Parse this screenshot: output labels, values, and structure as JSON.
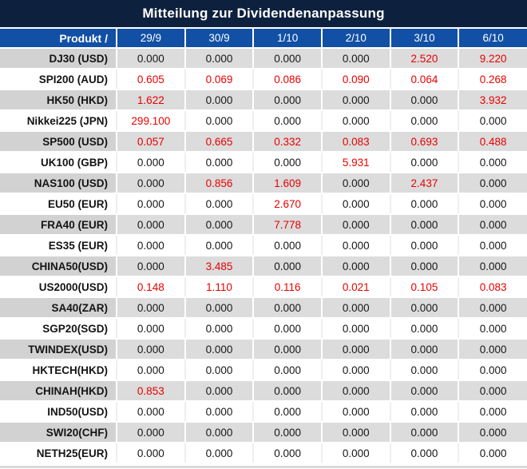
{
  "title": "Mitteilung zur Dividendenanpassung",
  "colors": {
    "title_bar_bg": "#0d203e",
    "header_row_bg": "#1150a5",
    "stripe_label_bg": "#d2d2d2",
    "stripe_value_bg": "#dcdcdc",
    "red_value_text": "#e90000",
    "dark_value_text": "#161616"
  },
  "chart_data": {
    "type": "table",
    "title": "Mitteilung zur Dividendenanpassung",
    "columns": [
      "Produkt /",
      "29/9",
      "30/9",
      "1/10",
      "2/10",
      "3/10",
      "6/10"
    ],
    "rows": [
      {
        "product": "DJ30 (USD)",
        "values": [
          "0.000",
          "0.000",
          "0.000",
          "0.000",
          "2.520",
          "9.220"
        ],
        "red": [
          false,
          false,
          false,
          false,
          true,
          true
        ]
      },
      {
        "product": "SPI200 (AUD)",
        "values": [
          "0.605",
          "0.069",
          "0.086",
          "0.090",
          "0.064",
          "0.268"
        ],
        "red": [
          true,
          true,
          true,
          true,
          true,
          true
        ]
      },
      {
        "product": "HK50 (HKD)",
        "values": [
          "1.622",
          "0.000",
          "0.000",
          "0.000",
          "0.000",
          "3.932"
        ],
        "red": [
          true,
          false,
          false,
          false,
          false,
          true
        ]
      },
      {
        "product": "Nikkei225 (JPN)",
        "values": [
          "299.100",
          "0.000",
          "0.000",
          "0.000",
          "0.000",
          "0.000"
        ],
        "red": [
          true,
          false,
          false,
          false,
          false,
          false
        ]
      },
      {
        "product": "SP500 (USD)",
        "values": [
          "0.057",
          "0.665",
          "0.332",
          "0.083",
          "0.693",
          "0.488"
        ],
        "red": [
          true,
          true,
          true,
          true,
          true,
          true
        ]
      },
      {
        "product": "UK100 (GBP)",
        "values": [
          "0.000",
          "0.000",
          "0.000",
          "5.931",
          "0.000",
          "0.000"
        ],
        "red": [
          false,
          false,
          false,
          true,
          false,
          false
        ]
      },
      {
        "product": "NAS100 (USD)",
        "values": [
          "0.000",
          "0.856",
          "1.609",
          "0.000",
          "2.437",
          "0.000"
        ],
        "red": [
          false,
          true,
          true,
          false,
          true,
          false
        ]
      },
      {
        "product": "EU50 (EUR)",
        "values": [
          "0.000",
          "0.000",
          "2.670",
          "0.000",
          "0.000",
          "0.000"
        ],
        "red": [
          false,
          false,
          true,
          false,
          false,
          false
        ]
      },
      {
        "product": "FRA40 (EUR)",
        "values": [
          "0.000",
          "0.000",
          "7.778",
          "0.000",
          "0.000",
          "0.000"
        ],
        "red": [
          false,
          false,
          true,
          false,
          false,
          false
        ]
      },
      {
        "product": "ES35 (EUR)",
        "values": [
          "0.000",
          "0.000",
          "0.000",
          "0.000",
          "0.000",
          "0.000"
        ],
        "red": [
          false,
          false,
          false,
          false,
          false,
          false
        ]
      },
      {
        "product": "CHINA50(USD)",
        "values": [
          "0.000",
          "3.485",
          "0.000",
          "0.000",
          "0.000",
          "0.000"
        ],
        "red": [
          false,
          true,
          false,
          false,
          false,
          false
        ]
      },
      {
        "product": "US2000(USD)",
        "values": [
          "0.148",
          "1.110",
          "0.116",
          "0.021",
          "0.105",
          "0.083"
        ],
        "red": [
          true,
          true,
          true,
          true,
          true,
          true
        ]
      },
      {
        "product": "SA40(ZAR)",
        "values": [
          "0.000",
          "0.000",
          "0.000",
          "0.000",
          "0.000",
          "0.000"
        ],
        "red": [
          false,
          false,
          false,
          false,
          false,
          false
        ]
      },
      {
        "product": "SGP20(SGD)",
        "values": [
          "0.000",
          "0.000",
          "0.000",
          "0.000",
          "0.000",
          "0.000"
        ],
        "red": [
          false,
          false,
          false,
          false,
          false,
          false
        ]
      },
      {
        "product": "TWINDEX(USD)",
        "values": [
          "0.000",
          "0.000",
          "0.000",
          "0.000",
          "0.000",
          "0.000"
        ],
        "red": [
          false,
          false,
          false,
          false,
          false,
          false
        ]
      },
      {
        "product": "HKTECH(HKD)",
        "values": [
          "0.000",
          "0.000",
          "0.000",
          "0.000",
          "0.000",
          "0.000"
        ],
        "red": [
          false,
          false,
          false,
          false,
          false,
          false
        ]
      },
      {
        "product": "CHINAH(HKD)",
        "values": [
          "0.853",
          "0.000",
          "0.000",
          "0.000",
          "0.000",
          "0.000"
        ],
        "red": [
          true,
          false,
          false,
          false,
          false,
          false
        ]
      },
      {
        "product": "IND50(USD)",
        "values": [
          "0.000",
          "0.000",
          "0.000",
          "0.000",
          "0.000",
          "0.000"
        ],
        "red": [
          false,
          false,
          false,
          false,
          false,
          false
        ]
      },
      {
        "product": "SWI20(CHF)",
        "values": [
          "0.000",
          "0.000",
          "0.000",
          "0.000",
          "0.000",
          "0.000"
        ],
        "red": [
          false,
          false,
          false,
          false,
          false,
          false
        ]
      },
      {
        "product": "NETH25(EUR)",
        "values": [
          "0.000",
          "0.000",
          "0.000",
          "0.000",
          "0.000",
          "0.000"
        ],
        "red": [
          false,
          false,
          false,
          false,
          false,
          false
        ]
      }
    ]
  }
}
